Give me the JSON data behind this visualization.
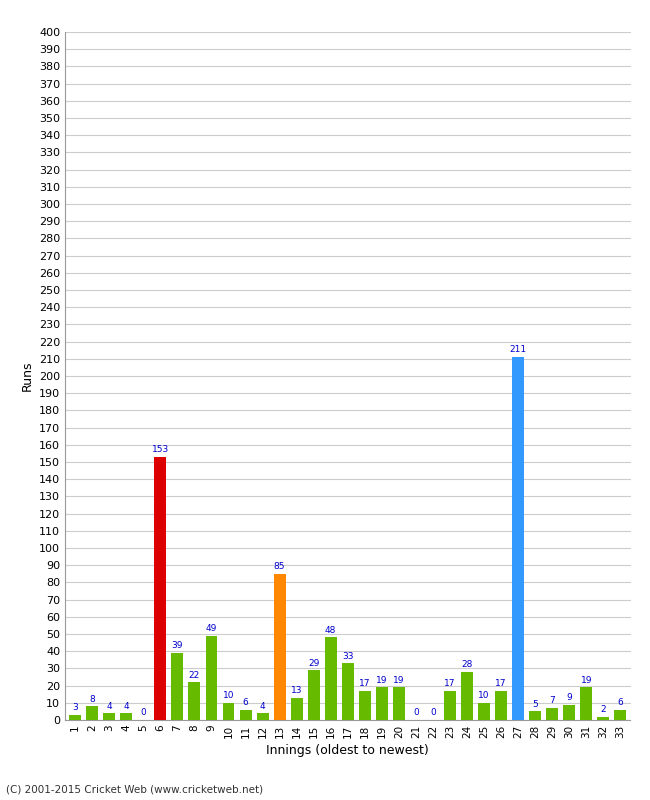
{
  "xlabel": "Innings (oldest to newest)",
  "ylabel": "Runs",
  "innings": [
    1,
    2,
    3,
    4,
    5,
    6,
    7,
    8,
    9,
    10,
    11,
    12,
    13,
    14,
    15,
    16,
    17,
    18,
    19,
    20,
    21,
    22,
    23,
    24,
    25,
    26,
    27,
    28,
    29,
    30,
    31,
    32,
    33
  ],
  "values": [
    3,
    8,
    4,
    4,
    0,
    153,
    39,
    22,
    49,
    10,
    6,
    4,
    85,
    13,
    29,
    48,
    33,
    17,
    19,
    19,
    0,
    0,
    17,
    28,
    10,
    17,
    211,
    5,
    7,
    9,
    19,
    2,
    6
  ],
  "colors": [
    "#66bb00",
    "#66bb00",
    "#66bb00",
    "#66bb00",
    "#66bb00",
    "#dd0000",
    "#66bb00",
    "#66bb00",
    "#66bb00",
    "#66bb00",
    "#66bb00",
    "#66bb00",
    "#ff8800",
    "#66bb00",
    "#66bb00",
    "#66bb00",
    "#66bb00",
    "#66bb00",
    "#66bb00",
    "#66bb00",
    "#66bb00",
    "#66bb00",
    "#66bb00",
    "#66bb00",
    "#66bb00",
    "#66bb00",
    "#3399ff",
    "#66bb00",
    "#66bb00",
    "#66bb00",
    "#66bb00",
    "#66bb00",
    "#66bb00"
  ],
  "ylim": [
    0,
    400
  ],
  "yticks": [
    0,
    10,
    20,
    30,
    40,
    50,
    60,
    70,
    80,
    90,
    100,
    110,
    120,
    130,
    140,
    150,
    160,
    170,
    180,
    190,
    200,
    210,
    220,
    230,
    240,
    250,
    260,
    270,
    280,
    290,
    300,
    310,
    320,
    330,
    340,
    350,
    360,
    370,
    380,
    390,
    400
  ],
  "bg_color": "#ffffff",
  "grid_color": "#cccccc",
  "label_color": "#0000cc",
  "footer": "(C) 2001-2015 Cricket Web (www.cricketweb.net)"
}
